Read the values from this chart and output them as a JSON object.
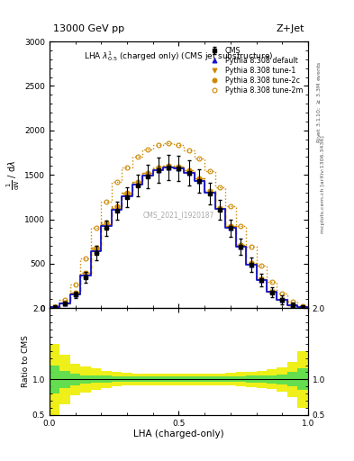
{
  "title_left": "13000 GeV pp",
  "title_right": "Z+Jet",
  "plot_title": "LHA $\\lambda^1_{0.5}$ (charged only) (CMS jet substructure)",
  "xlabel": "LHA (charged-only)",
  "ylabel_main": "$\\frac{1}{\\mathrm{d}N}$ / $\\mathrm{d}\\lambda$",
  "ylabel_ratio": "Ratio to CMS",
  "right_label_top": "Rivet 3.1.10; $\\geq$ 3.3M events",
  "right_label_bottom": "mcplots.cern.ch [arXiv:1306.3436]",
  "xlim": [
    0.0,
    1.0
  ],
  "ylim_main": [
    0,
    3000
  ],
  "ylim_ratio": [
    0.5,
    2.0
  ],
  "lha_bins": [
    0.0,
    0.04,
    0.08,
    0.12,
    0.16,
    0.2,
    0.24,
    0.28,
    0.32,
    0.36,
    0.4,
    0.44,
    0.48,
    0.52,
    0.56,
    0.6,
    0.64,
    0.68,
    0.72,
    0.76,
    0.8,
    0.84,
    0.88,
    0.92,
    0.96,
    1.0
  ],
  "cms_values": [
    10,
    50,
    150,
    350,
    620,
    900,
    1100,
    1250,
    1380,
    1480,
    1550,
    1580,
    1570,
    1520,
    1430,
    1290,
    1110,
    900,
    690,
    490,
    320,
    180,
    90,
    35,
    10
  ],
  "cms_errors_lo": [
    5,
    20,
    40,
    60,
    80,
    90,
    100,
    110,
    120,
    130,
    140,
    140,
    140,
    140,
    130,
    120,
    110,
    100,
    90,
    80,
    70,
    60,
    50,
    30,
    10
  ],
  "cms_errors_hi": [
    5,
    20,
    40,
    60,
    80,
    90,
    100,
    110,
    120,
    130,
    140,
    140,
    140,
    140,
    130,
    120,
    110,
    100,
    90,
    80,
    70,
    60,
    50,
    30,
    10
  ],
  "pythia_default_values": [
    10,
    55,
    160,
    370,
    640,
    920,
    1110,
    1260,
    1390,
    1490,
    1555,
    1585,
    1575,
    1525,
    1435,
    1295,
    1115,
    905,
    695,
    492,
    322,
    182,
    91,
    36,
    10
  ],
  "pythia_tune1_values": [
    10,
    58,
    168,
    385,
    660,
    945,
    1130,
    1278,
    1405,
    1505,
    1568,
    1595,
    1585,
    1535,
    1445,
    1305,
    1122,
    912,
    700,
    498,
    326,
    185,
    93,
    37,
    11
  ],
  "pythia_tune2c_values": [
    11,
    62,
    178,
    400,
    680,
    965,
    1150,
    1295,
    1420,
    1518,
    1580,
    1608,
    1598,
    1548,
    1458,
    1315,
    1130,
    920,
    708,
    505,
    332,
    190,
    96,
    38,
    11
  ],
  "pythia_tune2m_values": [
    15,
    90,
    270,
    560,
    900,
    1200,
    1420,
    1580,
    1700,
    1790,
    1840,
    1860,
    1840,
    1780,
    1680,
    1540,
    1360,
    1150,
    920,
    690,
    480,
    300,
    165,
    72,
    20
  ],
  "color_cms": "#000000",
  "color_default": "#1111cc",
  "color_tune1": "#cc8800",
  "color_tune2c": "#cc8800",
  "color_tune2m": "#cc8800",
  "cms_watermark": "CMS_2021_I1920187",
  "legend_entries": [
    "CMS",
    "Pythia 8.308 default",
    "Pythia 8.308 tune-1",
    "Pythia 8.308 tune-2c",
    "Pythia 8.308 tune-2m"
  ],
  "ratio_yellow_widths": [
    0.5,
    0.35,
    0.22,
    0.18,
    0.15,
    0.12,
    0.1,
    0.09,
    0.08,
    0.08,
    0.08,
    0.08,
    0.08,
    0.08,
    0.08,
    0.08,
    0.08,
    0.09,
    0.1,
    0.11,
    0.12,
    0.14,
    0.17,
    0.25,
    0.4
  ],
  "ratio_green_widths": [
    0.2,
    0.12,
    0.08,
    0.06,
    0.05,
    0.05,
    0.04,
    0.04,
    0.04,
    0.04,
    0.04,
    0.04,
    0.04,
    0.04,
    0.04,
    0.04,
    0.04,
    0.04,
    0.04,
    0.05,
    0.05,
    0.06,
    0.07,
    0.1,
    0.15
  ]
}
